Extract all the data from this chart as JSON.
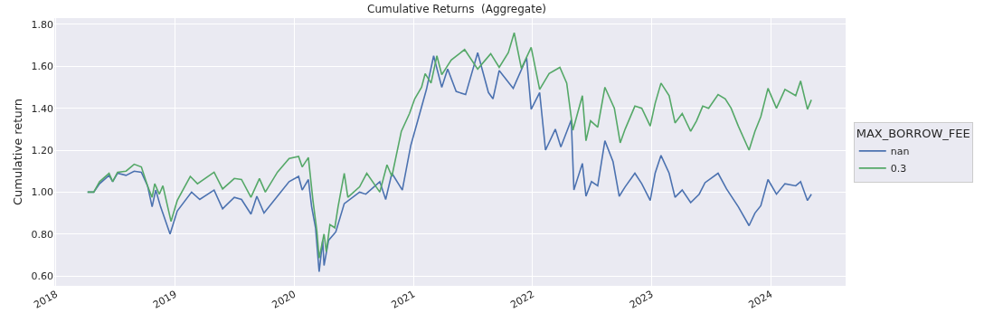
{
  "chart_data": {
    "type": "line",
    "title": "Cumulative Returns  (Aggregate)",
    "ylabel": "Cumulative return",
    "legend_title": "MAX_BORROW_FEE",
    "series": [
      {
        "name": "nan",
        "color": "#4c72b0",
        "x": [
          "2018-04-08",
          "2018-04-27",
          "2018-05-15",
          "2018-06-13",
          "2018-06-24",
          "2018-07-09",
          "2018-08-04",
          "2018-08-29",
          "2018-09-20",
          "2018-10-09",
          "2018-10-23",
          "2018-11-03",
          "2018-11-18",
          "2018-12-17",
          "2019-01-08",
          "2019-02-21",
          "2019-03-18",
          "2019-05-01",
          "2019-05-27",
          "2019-07-02",
          "2019-07-24",
          "2019-08-22",
          "2019-09-09",
          "2019-10-01",
          "2019-11-11",
          "2019-12-17",
          "2020-01-15",
          "2020-01-26",
          "2020-02-14",
          "2020-02-24",
          "2020-03-07",
          "2020-03-18",
          "2020-03-29",
          "2020-04-02",
          "2020-04-16",
          "2020-05-08",
          "2020-06-03",
          "2020-07-20",
          "2020-08-08",
          "2020-09-20",
          "2020-10-08",
          "2020-10-27",
          "2020-11-28",
          "2020-12-24",
          "2021-01-15",
          "2021-02-10",
          "2021-03-04",
          "2021-03-29",
          "2021-04-16",
          "2021-05-12",
          "2021-06-10",
          "2021-07-17",
          "2021-08-19",
          "2021-09-02",
          "2021-09-21",
          "2021-11-03",
          "2021-12-14",
          "2021-12-28",
          "2022-01-23",
          "2022-02-10",
          "2022-03-12",
          "2022-03-29",
          "2022-04-30",
          "2022-05-08",
          "2022-06-03",
          "2022-06-14",
          "2022-07-01",
          "2022-07-20",
          "2022-08-11",
          "2022-09-05",
          "2022-09-24",
          "2022-10-12",
          "2022-11-11",
          "2022-12-02",
          "2022-12-28",
          "2023-01-12",
          "2023-01-30",
          "2023-02-24",
          "2023-03-14",
          "2023-04-05",
          "2023-05-01",
          "2023-05-27",
          "2023-06-14",
          "2023-07-24",
          "2023-08-19",
          "2023-09-24",
          "2023-10-27",
          "2023-11-14",
          "2023-12-02",
          "2023-12-24",
          "2024-01-19",
          "2024-02-14",
          "2024-03-18",
          "2024-04-02",
          "2024-04-23",
          "2024-05-05"
        ],
        "values": [
          1.0,
          1.0,
          1.04,
          1.08,
          1.05,
          1.09,
          1.08,
          1.1,
          1.095,
          1.03,
          0.93,
          1.01,
          0.93,
          0.8,
          0.91,
          1.0,
          0.965,
          1.01,
          0.92,
          0.975,
          0.965,
          0.895,
          0.98,
          0.9,
          0.98,
          1.05,
          1.075,
          1.01,
          1.06,
          0.93,
          0.83,
          0.62,
          0.77,
          0.65,
          0.77,
          0.81,
          0.945,
          1.0,
          0.99,
          1.05,
          0.965,
          1.09,
          1.01,
          1.223,
          1.345,
          1.49,
          1.65,
          1.5,
          1.587,
          1.48,
          1.465,
          1.665,
          1.475,
          1.445,
          1.58,
          1.495,
          1.64,
          1.395,
          1.475,
          1.2,
          1.3,
          1.215,
          1.345,
          1.01,
          1.137,
          0.98,
          1.05,
          1.03,
          1.245,
          1.145,
          0.98,
          1.025,
          1.09,
          1.04,
          0.96,
          1.09,
          1.175,
          1.09,
          0.975,
          1.01,
          0.95,
          0.99,
          1.045,
          1.09,
          1.015,
          0.93,
          0.84,
          0.9,
          0.935,
          1.06,
          0.99,
          1.04,
          1.03,
          1.05,
          0.96,
          0.99
        ]
      },
      {
        "name": "0.3",
        "color": "#55a868",
        "x": [
          "2018-04-08",
          "2018-04-27",
          "2018-05-15",
          "2018-06-13",
          "2018-06-24",
          "2018-07-09",
          "2018-08-04",
          "2018-08-29",
          "2018-09-20",
          "2018-10-09",
          "2018-10-23",
          "2018-10-31",
          "2018-11-14",
          "2018-11-25",
          "2018-12-20",
          "2019-01-08",
          "2019-02-17",
          "2019-03-11",
          "2019-05-01",
          "2019-05-27",
          "2019-07-02",
          "2019-07-24",
          "2019-08-22",
          "2019-09-17",
          "2019-10-05",
          "2019-11-11",
          "2019-12-17",
          "2020-01-15",
          "2020-01-26",
          "2020-02-14",
          "2020-02-28",
          "2020-03-11",
          "2020-03-18",
          "2020-04-02",
          "2020-04-09",
          "2020-04-20",
          "2020-05-05",
          "2020-05-15",
          "2020-06-03",
          "2020-06-14",
          "2020-07-20",
          "2020-08-11",
          "2020-09-20",
          "2020-10-12",
          "2020-10-27",
          "2020-11-25",
          "2020-12-20",
          "2021-01-05",
          "2021-01-26",
          "2021-02-06",
          "2021-02-24",
          "2021-03-14",
          "2021-03-29",
          "2021-04-27",
          "2021-06-07",
          "2021-07-17",
          "2021-08-26",
          "2021-09-21",
          "2021-10-19",
          "2021-11-06",
          "2021-11-28",
          "2021-12-28",
          "2022-01-23",
          "2022-02-21",
          "2022-03-26",
          "2022-04-16",
          "2022-05-05",
          "2022-06-03",
          "2022-06-14",
          "2022-06-28",
          "2022-07-20",
          "2022-08-11",
          "2022-09-09",
          "2022-09-27",
          "2022-10-12",
          "2022-11-11",
          "2022-12-02",
          "2022-12-28",
          "2023-01-12",
          "2023-01-30",
          "2023-02-24",
          "2023-03-14",
          "2023-04-05",
          "2023-05-01",
          "2023-05-19",
          "2023-06-07",
          "2023-06-25",
          "2023-07-24",
          "2023-08-15",
          "2023-09-02",
          "2023-09-24",
          "2023-10-27",
          "2023-11-14",
          "2023-12-02",
          "2023-12-24",
          "2024-01-19",
          "2024-02-14",
          "2024-03-18",
          "2024-04-02",
          "2024-04-23",
          "2024-05-05"
        ],
        "values": [
          1.0,
          1.0,
          1.05,
          1.09,
          1.05,
          1.095,
          1.1,
          1.133,
          1.12,
          1.03,
          0.975,
          1.04,
          0.99,
          1.03,
          0.86,
          0.96,
          1.075,
          1.04,
          1.095,
          1.015,
          1.065,
          1.06,
          0.975,
          1.065,
          1.0,
          1.095,
          1.16,
          1.17,
          1.12,
          1.165,
          0.96,
          0.815,
          0.685,
          0.8,
          0.715,
          0.845,
          0.83,
          0.93,
          1.09,
          0.975,
          1.025,
          1.09,
          1.0,
          1.13,
          1.075,
          1.29,
          1.375,
          1.445,
          1.5,
          1.565,
          1.52,
          1.65,
          1.56,
          1.63,
          1.68,
          1.587,
          1.66,
          1.595,
          1.665,
          1.76,
          1.59,
          1.69,
          1.49,
          1.565,
          1.595,
          1.52,
          1.295,
          1.46,
          1.245,
          1.34,
          1.31,
          1.5,
          1.4,
          1.235,
          1.3,
          1.41,
          1.4,
          1.315,
          1.423,
          1.52,
          1.46,
          1.33,
          1.375,
          1.29,
          1.34,
          1.41,
          1.4,
          1.465,
          1.445,
          1.4,
          1.315,
          1.2,
          1.29,
          1.36,
          1.495,
          1.4,
          1.49,
          1.46,
          1.53,
          1.395,
          1.44
        ]
      }
    ],
    "xlim": [
      "2017-12-27",
      "2024-08-18"
    ],
    "xticks": [
      {
        "value": "2018-01-01",
        "label": "2018"
      },
      {
        "value": "2019-01-01",
        "label": "2019"
      },
      {
        "value": "2020-01-01",
        "label": "2020"
      },
      {
        "value": "2021-01-01",
        "label": "2021"
      },
      {
        "value": "2022-01-01",
        "label": "2022"
      },
      {
        "value": "2023-01-01",
        "label": "2023"
      },
      {
        "value": "2024-01-01",
        "label": "2024"
      }
    ],
    "ylim": [
      0.553,
      1.83
    ],
    "yticks": [
      {
        "value": 0.6,
        "label": "0.60"
      },
      {
        "value": 0.8,
        "label": "0.80"
      },
      {
        "value": 1.0,
        "label": "1.00"
      },
      {
        "value": 1.2,
        "label": "1.20"
      },
      {
        "value": 1.4,
        "label": "1.40"
      },
      {
        "value": 1.6,
        "label": "1.60"
      },
      {
        "value": 1.8,
        "label": "1.80"
      }
    ],
    "grid": true,
    "legend": "right",
    "marker": "none",
    "line_style": "solid"
  }
}
